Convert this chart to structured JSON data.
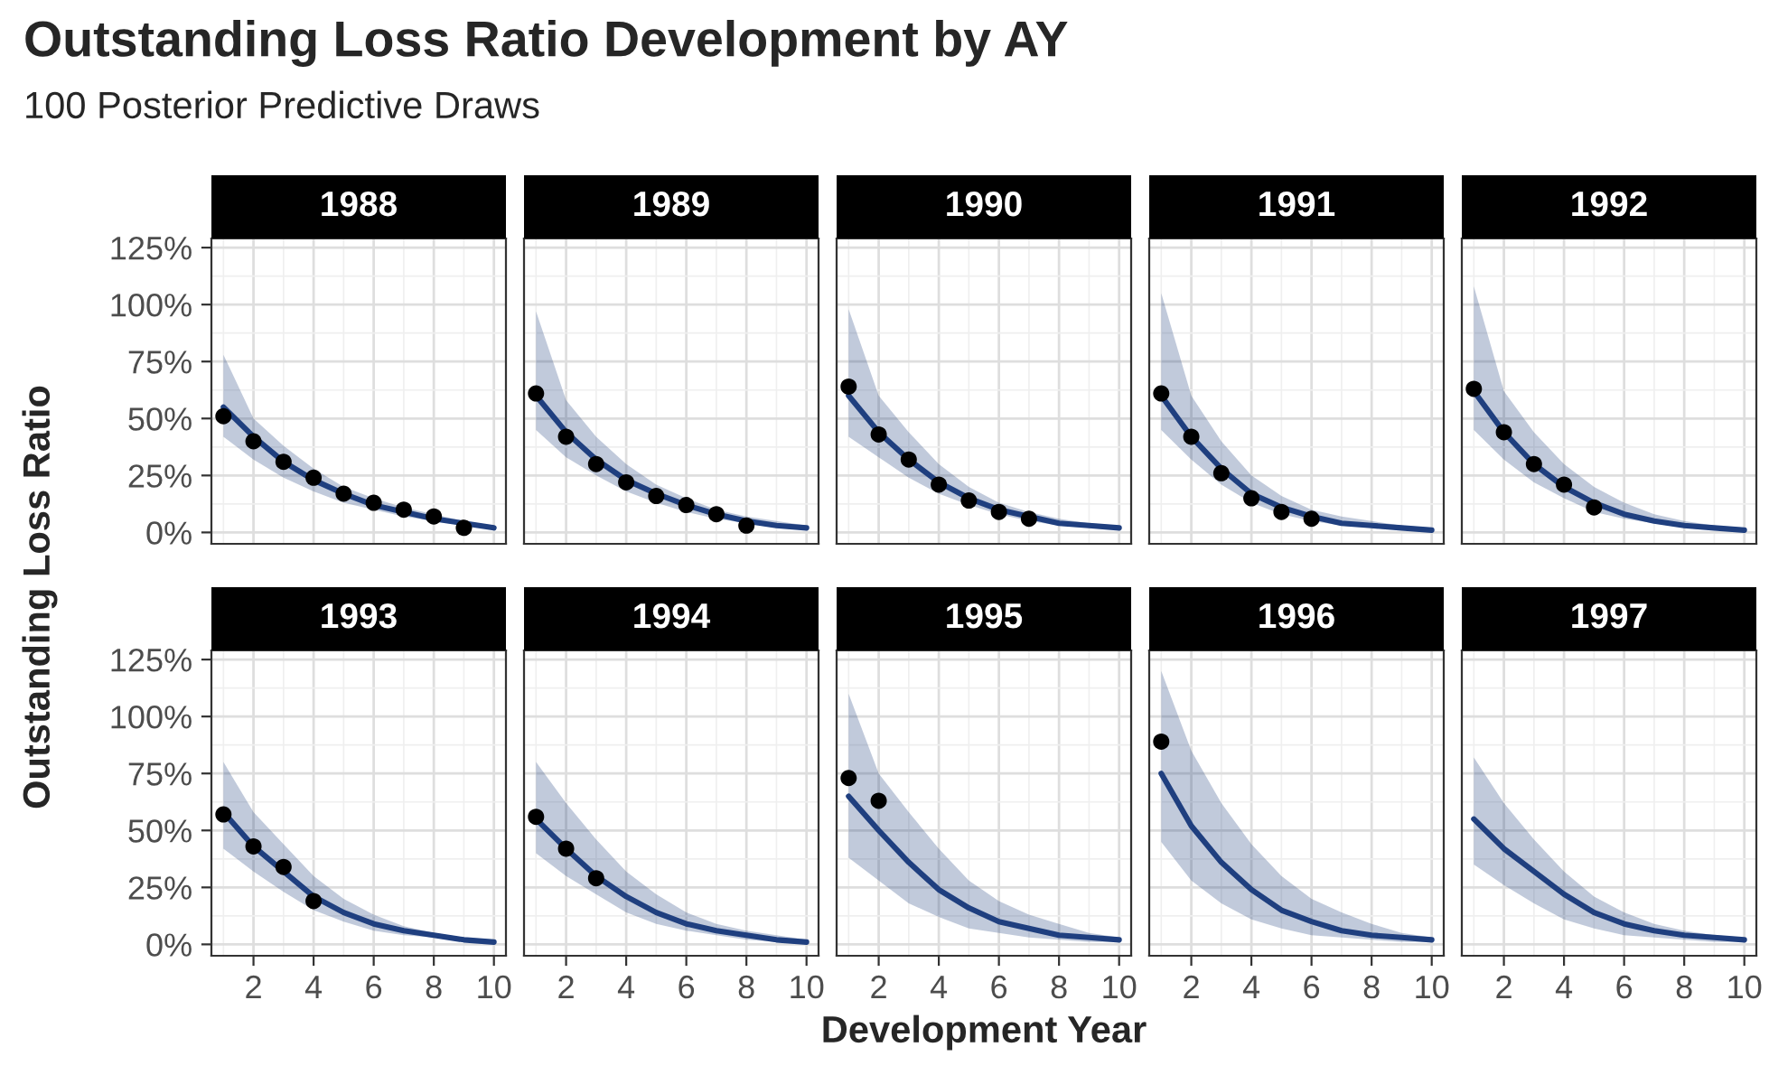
{
  "chart_data": [
    {
      "type": "line",
      "title": "1988",
      "annotations": [
        "Outstanding Loss Ratio Development by AY",
        "100 Posterior Predictive Draws"
      ],
      "ylabel": "Outstanding Loss Ratio",
      "x": [
        1,
        2,
        3,
        4,
        5,
        6,
        7,
        8,
        9,
        10
      ],
      "xlim": [
        0.6,
        10.4
      ],
      "xticks": [
        2,
        4,
        6,
        8,
        10
      ],
      "ylim": [
        -5,
        129
      ],
      "yticks": [
        {
          "value": 0,
          "label": "0%"
        },
        {
          "value": 25,
          "label": "25%"
        },
        {
          "value": 50,
          "label": "50%"
        },
        {
          "value": 75,
          "label": "75%"
        },
        {
          "value": 100,
          "label": "100%"
        },
        {
          "value": 125,
          "label": "125%"
        }
      ],
      "grid": true,
      "tick_labels": "y",
      "series": [
        {
          "type": "line",
          "color": "#1f3f7f",
          "values": [
            55,
            42,
            31,
            23,
            17,
            12,
            9,
            6,
            4,
            2
          ],
          "lower": [
            42,
            32,
            24,
            18,
            13,
            10,
            7,
            5,
            3,
            2
          ],
          "upper": [
            78,
            50,
            38,
            28,
            20,
            15,
            11,
            8,
            5,
            3
          ]
        },
        {
          "type": "scatter",
          "color": "#000000",
          "marker": "circle",
          "x": [
            1,
            2,
            3,
            4,
            5,
            6,
            7,
            8,
            9
          ],
          "values": [
            51,
            40,
            31,
            24,
            17,
            13,
            10,
            7,
            2
          ]
        }
      ]
    },
    {
      "type": "line",
      "title": "1989",
      "x": [
        1,
        2,
        3,
        4,
        5,
        6,
        7,
        8,
        9,
        10
      ],
      "xlim": [
        0.6,
        10.4
      ],
      "xticks": [
        2,
        4,
        6,
        8,
        10
      ],
      "ylim": [
        -5,
        129
      ],
      "yticks": [
        0,
        25,
        50,
        75,
        100,
        125
      ],
      "grid": true,
      "tick_labels": false,
      "series": [
        {
          "type": "line",
          "color": "#1f3f7f",
          "values": [
            60,
            44,
            32,
            23,
            17,
            12,
            8,
            5,
            3,
            2
          ],
          "lower": [
            45,
            33,
            25,
            18,
            13,
            9,
            6,
            4,
            2,
            1
          ],
          "upper": [
            97,
            58,
            42,
            30,
            21,
            15,
            10,
            7,
            5,
            3
          ]
        },
        {
          "type": "scatter",
          "color": "#000000",
          "marker": "circle",
          "x": [
            1,
            2,
            3,
            4,
            5,
            6,
            7,
            8
          ],
          "values": [
            61,
            42,
            30,
            22,
            16,
            12,
            8,
            3
          ]
        }
      ]
    },
    {
      "type": "line",
      "title": "1990",
      "x": [
        1,
        2,
        3,
        4,
        5,
        6,
        7,
        8,
        9,
        10
      ],
      "xlim": [
        0.6,
        10.4
      ],
      "xticks": [
        2,
        4,
        6,
        8,
        10
      ],
      "ylim": [
        -5,
        129
      ],
      "yticks": [
        0,
        25,
        50,
        75,
        100,
        125
      ],
      "grid": true,
      "tick_labels": false,
      "series": [
        {
          "type": "line",
          "color": "#1f3f7f",
          "values": [
            60,
            44,
            32,
            22,
            15,
            10,
            7,
            4,
            3,
            2
          ],
          "lower": [
            42,
            33,
            24,
            17,
            12,
            8,
            5,
            3,
            2,
            1
          ],
          "upper": [
            98,
            60,
            44,
            30,
            20,
            13,
            9,
            6,
            4,
            3
          ]
        },
        {
          "type": "scatter",
          "color": "#000000",
          "marker": "circle",
          "x": [
            1,
            2,
            3,
            4,
            5,
            6,
            7
          ],
          "values": [
            64,
            43,
            32,
            21,
            14,
            9,
            6
          ]
        }
      ]
    },
    {
      "type": "line",
      "title": "1991",
      "x": [
        1,
        2,
        3,
        4,
        5,
        6,
        7,
        8,
        9,
        10
      ],
      "xlim": [
        0.6,
        10.4
      ],
      "xticks": [
        2,
        4,
        6,
        8,
        10
      ],
      "ylim": [
        -5,
        129
      ],
      "yticks": [
        0,
        25,
        50,
        75,
        100,
        125
      ],
      "grid": true,
      "tick_labels": false,
      "series": [
        {
          "type": "line",
          "color": "#1f3f7f",
          "values": [
            60,
            42,
            28,
            17,
            11,
            7,
            4,
            3,
            2,
            1
          ],
          "lower": [
            45,
            32,
            21,
            13,
            8,
            5,
            3,
            2,
            1,
            1
          ],
          "upper": [
            105,
            60,
            40,
            25,
            16,
            10,
            7,
            5,
            3,
            2
          ]
        },
        {
          "type": "scatter",
          "color": "#000000",
          "marker": "circle",
          "x": [
            1,
            2,
            3,
            4,
            5,
            6
          ],
          "values": [
            61,
            42,
            26,
            15,
            9,
            6
          ]
        }
      ]
    },
    {
      "type": "line",
      "title": "1992",
      "x": [
        1,
        2,
        3,
        4,
        5,
        6,
        7,
        8,
        9,
        10
      ],
      "xlim": [
        0.6,
        10.4
      ],
      "xticks": [
        2,
        4,
        6,
        8,
        10
      ],
      "ylim": [
        -5,
        129
      ],
      "yticks": [
        0,
        25,
        50,
        75,
        100,
        125
      ],
      "grid": true,
      "tick_labels": false,
      "series": [
        {
          "type": "line",
          "color": "#1f3f7f",
          "values": [
            62,
            44,
            30,
            20,
            13,
            8,
            5,
            3,
            2,
            1
          ],
          "lower": [
            45,
            32,
            22,
            15,
            9,
            6,
            4,
            2,
            1,
            1
          ],
          "upper": [
            108,
            62,
            44,
            30,
            20,
            13,
            8,
            5,
            3,
            2
          ]
        },
        {
          "type": "scatter",
          "color": "#000000",
          "marker": "circle",
          "x": [
            1,
            2,
            3,
            4,
            5
          ],
          "values": [
            63,
            44,
            30,
            21,
            11
          ]
        }
      ]
    },
    {
      "type": "line",
      "title": "1993",
      "x": [
        1,
        2,
        3,
        4,
        5,
        6,
        7,
        8,
        9,
        10
      ],
      "xlim": [
        0.6,
        10.4
      ],
      "xticks": [
        2,
        4,
        6,
        8,
        10
      ],
      "ylim": [
        -5,
        129
      ],
      "yticks": [
        {
          "value": 0,
          "label": "0%"
        },
        {
          "value": 25,
          "label": "25%"
        },
        {
          "value": 50,
          "label": "50%"
        },
        {
          "value": 75,
          "label": "75%"
        },
        {
          "value": 100,
          "label": "100%"
        },
        {
          "value": 125,
          "label": "125%"
        }
      ],
      "grid": true,
      "series": [
        {
          "type": "line",
          "color": "#1f3f7f",
          "values": [
            58,
            43,
            32,
            21,
            14,
            9,
            6,
            4,
            2,
            1
          ],
          "lower": [
            42,
            32,
            23,
            15,
            10,
            6,
            4,
            3,
            1,
            1
          ],
          "upper": [
            80,
            58,
            44,
            30,
            20,
            13,
            8,
            5,
            3,
            2
          ]
        },
        {
          "type": "scatter",
          "color": "#000000",
          "marker": "circle",
          "x": [
            1,
            2,
            3,
            4
          ],
          "values": [
            57,
            43,
            34,
            19
          ]
        }
      ]
    },
    {
      "type": "line",
      "title": "1994",
      "x": [
        1,
        2,
        3,
        4,
        5,
        6,
        7,
        8,
        9,
        10
      ],
      "xlim": [
        0.6,
        10.4
      ],
      "xticks": [
        2,
        4,
        6,
        8,
        10
      ],
      "ylim": [
        -5,
        129
      ],
      "yticks": [
        0,
        25,
        50,
        75,
        100,
        125
      ],
      "grid": true,
      "tick_labels": "x",
      "series": [
        {
          "type": "line",
          "color": "#1f3f7f",
          "values": [
            55,
            42,
            30,
            21,
            14,
            9,
            6,
            4,
            2,
            1
          ],
          "lower": [
            40,
            30,
            22,
            14,
            9,
            6,
            4,
            2,
            1,
            1
          ],
          "upper": [
            80,
            62,
            46,
            32,
            22,
            14,
            9,
            6,
            4,
            2
          ]
        },
        {
          "type": "scatter",
          "color": "#000000",
          "marker": "circle",
          "x": [
            1,
            2,
            3
          ],
          "values": [
            56,
            42,
            29
          ]
        }
      ]
    },
    {
      "type": "line",
      "title": "1995",
      "xlabel": "Development Year",
      "x": [
        1,
        2,
        3,
        4,
        5,
        6,
        7,
        8,
        9,
        10
      ],
      "xlim": [
        0.6,
        10.4
      ],
      "xticks": [
        2,
        4,
        6,
        8,
        10
      ],
      "ylim": [
        -5,
        129
      ],
      "yticks": [
        0,
        25,
        50,
        75,
        100,
        125
      ],
      "grid": true,
      "tick_labels": "x",
      "series": [
        {
          "type": "line",
          "color": "#1f3f7f",
          "values": [
            65,
            50,
            36,
            24,
            16,
            10,
            7,
            4,
            3,
            2
          ],
          "lower": [
            38,
            28,
            18,
            12,
            7,
            5,
            3,
            2,
            1,
            1
          ],
          "upper": [
            110,
            75,
            58,
            42,
            28,
            19,
            13,
            9,
            5,
            3
          ]
        },
        {
          "type": "scatter",
          "color": "#000000",
          "marker": "circle",
          "x": [
            1,
            2
          ],
          "values": [
            73,
            63
          ]
        }
      ]
    },
    {
      "type": "line",
      "title": "1996",
      "x": [
        1,
        2,
        3,
        4,
        5,
        6,
        7,
        8,
        9,
        10
      ],
      "xlim": [
        0.6,
        10.4
      ],
      "xticks": [
        2,
        4,
        6,
        8,
        10
      ],
      "ylim": [
        -5,
        129
      ],
      "yticks": [
        0,
        25,
        50,
        75,
        100,
        125
      ],
      "grid": true,
      "tick_labels": "x",
      "series": [
        {
          "type": "line",
          "color": "#1f3f7f",
          "values": [
            75,
            52,
            36,
            24,
            15,
            10,
            6,
            4,
            3,
            2
          ],
          "lower": [
            45,
            28,
            18,
            11,
            7,
            4,
            3,
            2,
            1,
            1
          ],
          "upper": [
            120,
            85,
            62,
            44,
            30,
            20,
            14,
            9,
            5,
            3
          ]
        },
        {
          "type": "scatter",
          "color": "#000000",
          "marker": "circle",
          "x": [
            1
          ],
          "values": [
            89
          ]
        }
      ]
    },
    {
      "type": "line",
      "title": "1997",
      "x": [
        1,
        2,
        3,
        4,
        5,
        6,
        7,
        8,
        9,
        10
      ],
      "xlim": [
        0.6,
        10.4
      ],
      "xticks": [
        2,
        4,
        6,
        8,
        10
      ],
      "ylim": [
        -5,
        129
      ],
      "yticks": [
        0,
        25,
        50,
        75,
        100,
        125
      ],
      "grid": true,
      "tick_labels": "x",
      "series": [
        {
          "type": "line",
          "color": "#1f3f7f",
          "values": [
            55,
            42,
            32,
            22,
            14,
            9,
            6,
            4,
            3,
            2
          ],
          "lower": [
            35,
            26,
            18,
            11,
            7,
            4,
            3,
            2,
            1,
            1
          ],
          "upper": [
            82,
            62,
            46,
            32,
            21,
            14,
            9,
            6,
            4,
            3
          ]
        }
      ]
    }
  ]
}
